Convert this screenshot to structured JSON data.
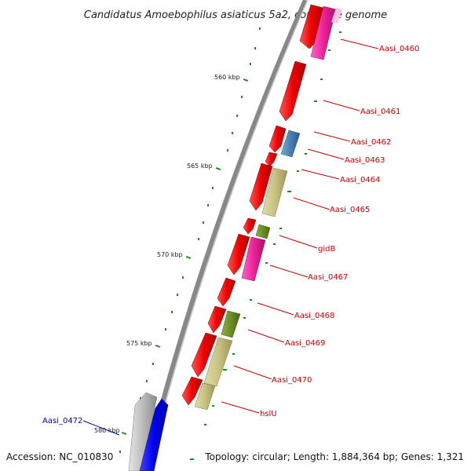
{
  "title": "Candidatus Amoebophilus asiaticus 5a2, complete genome",
  "footer": {
    "accession": "Accession: NC_010830",
    "topology": "Topology: circular; Length: 1,884,364 bp; Genes: 1,321"
  },
  "colors": {
    "gene_label": "#cc0000",
    "reverse_label": "#0000aa",
    "backbone": "#888888",
    "tick": "#228822",
    "red_gene": "#ee0000",
    "pink_gene": "#ee2299",
    "blue_gene": "#4a7fb5",
    "khaki_gene": "#c8c383",
    "olive_gene": "#6b8e23",
    "gray_gene": "#bbbbbb",
    "dark_blue_gene": "#0000ee"
  },
  "kbp_labels": [
    "560 kbp",
    "565 kbp",
    "570 kbp",
    "575 kbp",
    "580 kbp"
  ],
  "gene_labels": [
    {
      "text": "Aasi_0460",
      "strand": "forward"
    },
    {
      "text": "Aasi_0461",
      "strand": "forward"
    },
    {
      "text": "Aasi_0462",
      "strand": "forward"
    },
    {
      "text": "Aasi_0463",
      "strand": "forward"
    },
    {
      "text": "Aasi_0464",
      "strand": "forward"
    },
    {
      "text": "Aasi_0465",
      "strand": "forward"
    },
    {
      "text": "gidB",
      "strand": "forward"
    },
    {
      "text": "Aasi_0467",
      "strand": "forward"
    },
    {
      "text": "Aasi_0468",
      "strand": "forward"
    },
    {
      "text": "Aasi_0469",
      "strand": "forward"
    },
    {
      "text": "Aasi_0470",
      "strand": "forward"
    },
    {
      "text": "hslU",
      "strand": "forward"
    },
    {
      "text": "Aasi_0472",
      "strand": "reverse"
    }
  ]
}
